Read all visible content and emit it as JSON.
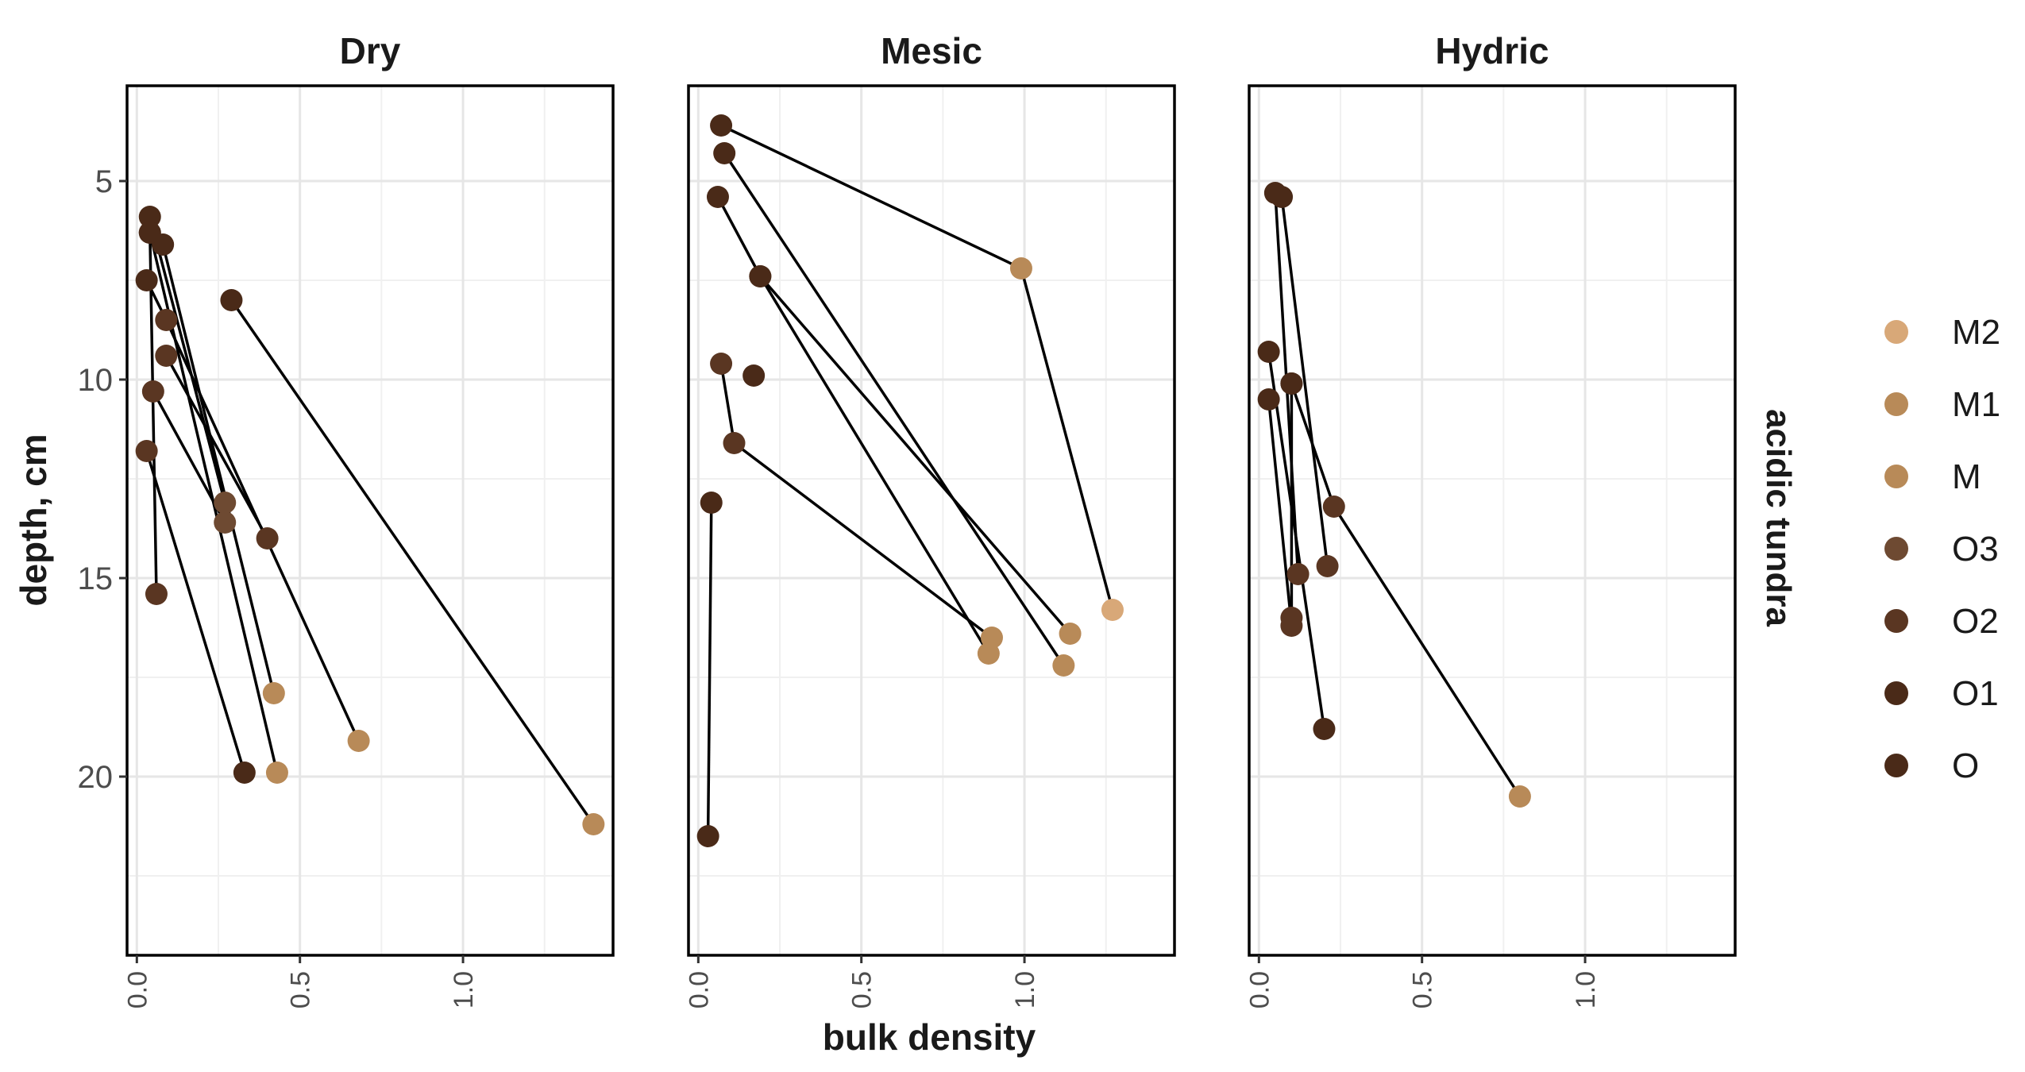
{
  "chart_data": {
    "type": "scatter",
    "xlabel": "bulk density",
    "ylabel": "depth, cm",
    "strip_right": "acidic tundra",
    "xlim": [
      -0.03,
      1.46
    ],
    "ylim": [
      24.5,
      2.6
    ],
    "y_reversed": true,
    "x_ticks": [
      "0.0",
      "0.5",
      "1.0"
    ],
    "x_tick_values": [
      0,
      0.5,
      1.0
    ],
    "y_ticks": [
      "5",
      "10",
      "15",
      "20"
    ],
    "y_tick_values": [
      5,
      10,
      15,
      20
    ],
    "grid": true,
    "legend_position": "right",
    "horizons": [
      {
        "name": "M2",
        "color": "#d8a878"
      },
      {
        "name": "M1",
        "color": "#b88a58"
      },
      {
        "name": "M",
        "color": "#b88a58"
      },
      {
        "name": "O3",
        "color": "#6e4a32"
      },
      {
        "name": "O2",
        "color": "#5a3622"
      },
      {
        "name": "O1",
        "color": "#4a2a18"
      },
      {
        "name": "O",
        "color": "#4a2a18"
      }
    ],
    "panels": [
      {
        "title": "Dry",
        "profiles": [
          [
            {
              "x": 0.04,
              "y": 5.9,
              "h": "O"
            },
            {
              "x": 0.27,
              "y": 13.1,
              "h": "O3"
            }
          ],
          [
            {
              "x": 0.04,
              "y": 6.3,
              "h": "O"
            },
            {
              "x": 0.43,
              "y": 19.9,
              "h": "M"
            }
          ],
          [
            {
              "x": 0.08,
              "y": 6.6,
              "h": "O1"
            },
            {
              "x": 0.42,
              "y": 17.9,
              "h": "M"
            }
          ],
          [
            {
              "x": 0.29,
              "y": 8.0,
              "h": "O1"
            },
            {
              "x": 1.4,
              "y": 21.2,
              "h": "M"
            }
          ],
          [
            {
              "x": 0.03,
              "y": 7.5,
              "h": "O"
            },
            {
              "x": 0.09,
              "y": 8.5,
              "h": "O2"
            },
            {
              "x": 0.68,
              "y": 19.1,
              "h": "M"
            }
          ],
          [
            {
              "x": 0.09,
              "y": 9.4,
              "h": "O2"
            },
            {
              "x": 0.4,
              "y": 14.0,
              "h": "O2"
            }
          ],
          [
            {
              "x": 0.05,
              "y": 10.3,
              "h": "O2"
            },
            {
              "x": 0.27,
              "y": 13.6,
              "h": "O3"
            }
          ],
          [
            {
              "x": 0.03,
              "y": 11.8,
              "h": "O2"
            },
            {
              "x": 0.33,
              "y": 19.9,
              "h": "O1"
            }
          ],
          [
            {
              "x": 0.04,
              "y": 6.3,
              "h": "O"
            },
            {
              "x": 0.06,
              "y": 15.4,
              "h": "O2"
            }
          ]
        ]
      },
      {
        "title": "Mesic",
        "profiles": [
          [
            {
              "x": 0.07,
              "y": 3.6,
              "h": "O"
            },
            {
              "x": 0.99,
              "y": 7.2,
              "h": "M"
            },
            {
              "x": 1.27,
              "y": 15.8,
              "h": "M2"
            }
          ],
          [
            {
              "x": 0.08,
              "y": 4.3,
              "h": "O1"
            },
            {
              "x": 1.12,
              "y": 17.2,
              "h": "M"
            }
          ],
          [
            {
              "x": 0.06,
              "y": 5.4,
              "h": "O1"
            },
            {
              "x": 0.19,
              "y": 7.4,
              "h": "O1"
            },
            {
              "x": 1.14,
              "y": 16.4,
              "h": "M"
            }
          ],
          [
            {
              "x": 0.19,
              "y": 7.4,
              "h": "O1"
            },
            {
              "x": 0.89,
              "y": 16.9,
              "h": "M"
            }
          ],
          [
            {
              "x": 0.07,
              "y": 9.6,
              "h": "O2"
            },
            {
              "x": 0.11,
              "y": 11.6,
              "h": "O2"
            },
            {
              "x": 0.9,
              "y": 16.5,
              "h": "M"
            }
          ],
          [
            {
              "x": 0.17,
              "y": 9.9,
              "h": "O1"
            }
          ],
          [
            {
              "x": 0.04,
              "y": 13.1,
              "h": "O1"
            },
            {
              "x": 0.03,
              "y": 21.5,
              "h": "O1"
            }
          ]
        ]
      },
      {
        "title": "Hydric",
        "profiles": [
          [
            {
              "x": 0.05,
              "y": 5.3,
              "h": "O"
            },
            {
              "x": 0.12,
              "y": 14.9,
              "h": "O2"
            }
          ],
          [
            {
              "x": 0.07,
              "y": 5.4,
              "h": "O1"
            },
            {
              "x": 0.21,
              "y": 14.7,
              "h": "O2"
            }
          ],
          [
            {
              "x": 0.03,
              "y": 9.3,
              "h": "O1"
            },
            {
              "x": 0.2,
              "y": 18.8,
              "h": "O1"
            }
          ],
          [
            {
              "x": 0.03,
              "y": 10.5,
              "h": "O1"
            },
            {
              "x": 0.1,
              "y": 16.2,
              "h": "O2"
            }
          ],
          [
            {
              "x": 0.1,
              "y": 10.1,
              "h": "O1"
            },
            {
              "x": 0.1,
              "y": 16.0,
              "h": "O2"
            }
          ],
          [
            {
              "x": 0.1,
              "y": 10.1,
              "h": "O1"
            },
            {
              "x": 0.23,
              "y": 13.2,
              "h": "O2"
            },
            {
              "x": 0.8,
              "y": 20.5,
              "h": "M"
            }
          ]
        ]
      }
    ]
  }
}
